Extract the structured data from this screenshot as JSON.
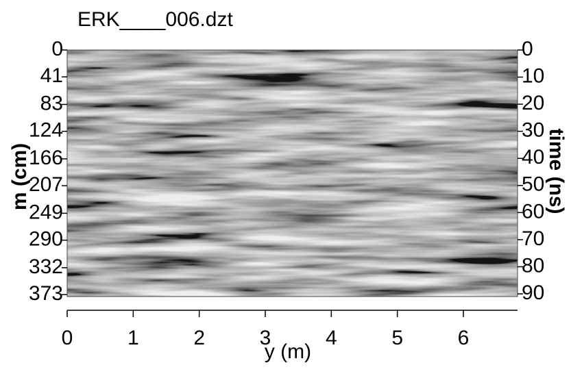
{
  "chart_data": {
    "type": "radargram",
    "title": "ERK____006.dzt",
    "x_label": "y (m)",
    "y_label": "m (cm)",
    "y2_label": "time (ns)",
    "xlim": [
      0,
      6.82
    ],
    "xticks": [
      0,
      1,
      2,
      3,
      4,
      5,
      6
    ],
    "ylim": [
      0,
      376
    ],
    "yticks": [
      0,
      41,
      83,
      124,
      166,
      207,
      249,
      290,
      332,
      373
    ],
    "y2lim": [
      0,
      91
    ],
    "y2ticks": [
      0,
      10,
      20,
      30,
      40,
      50,
      60,
      70,
      80,
      90
    ],
    "colormap": "gray"
  }
}
